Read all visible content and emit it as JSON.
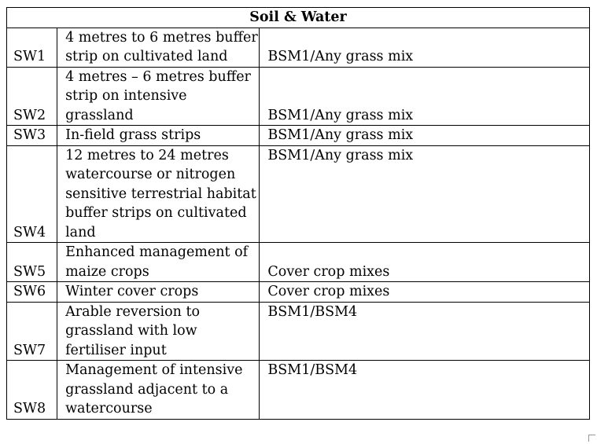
{
  "title": "Soil & Water",
  "rows": [
    {
      "code": "SW1",
      "desc": "4 metres to 6 metres buffer strip on cultivated land",
      "mix": "BSM1/Any grass mix",
      "mix_align": "bottom"
    },
    {
      "code": "SW2",
      "desc": "4 metres – 6 metres buffer strip on intensive grassland",
      "mix": "BSM1/Any grass mix",
      "mix_align": "bottom"
    },
    {
      "code": "SW3",
      "desc": "In-field grass strips",
      "mix": "BSM1/Any grass mix",
      "mix_align": "bottom"
    },
    {
      "code": "SW4",
      "desc": "12 metres to 24 metres watercourse or nitrogen sensitive terrestrial habitat buffer strips on cultivated land",
      "mix": "BSM1/Any grass mix",
      "mix_align": "top"
    },
    {
      "code": "SW5",
      "desc": "Enhanced management of maize crops",
      "mix": "Cover crop mixes",
      "mix_align": "bottom"
    },
    {
      "code": "SW6",
      "desc": "Winter cover crops",
      "mix": "Cover crop mixes",
      "mix_align": "bottom"
    },
    {
      "code": "SW7",
      "desc": "Arable reversion to grassland with low fertiliser input",
      "mix": "BSM1/BSM4",
      "mix_align": "top"
    },
    {
      "code": "SW8",
      "desc": "Management of intensive grassland adjacent to a watercourse",
      "mix": "BSM1/BSM4",
      "mix_align": "top"
    }
  ]
}
